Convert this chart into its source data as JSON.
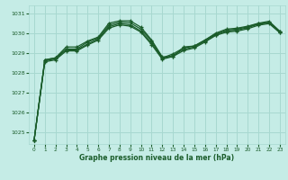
{
  "xlabel": "Graphe pression niveau de la mer (hPa)",
  "background_color": "#c5ece6",
  "grid_color": "#a8d8d0",
  "line_color": "#1a5c2a",
  "ylim": [
    1024.4,
    1031.4
  ],
  "xlim": [
    -0.5,
    23.5
  ],
  "yticks": [
    1025,
    1026,
    1027,
    1028,
    1029,
    1030,
    1031
  ],
  "xticks": [
    0,
    1,
    2,
    3,
    4,
    5,
    6,
    7,
    8,
    9,
    10,
    11,
    12,
    13,
    14,
    15,
    16,
    17,
    18,
    19,
    20,
    21,
    22,
    23
  ],
  "series": [
    [
      1024.6,
      1028.65,
      1028.75,
      1029.3,
      1029.3,
      1029.6,
      1029.8,
      1030.5,
      1030.62,
      1030.62,
      1030.3,
      1029.65,
      1028.8,
      1028.8,
      1029.3,
      1029.35,
      1029.65,
      1030.0,
      1030.2,
      1030.25,
      1030.35,
      1030.5,
      1030.6,
      1030.1
    ],
    [
      1024.6,
      1028.65,
      1028.75,
      1029.2,
      1029.2,
      1029.55,
      1029.75,
      1030.4,
      1030.55,
      1030.52,
      1030.2,
      1029.6,
      1028.75,
      1028.95,
      1029.25,
      1029.35,
      1029.65,
      1029.95,
      1030.15,
      1030.2,
      1030.32,
      1030.48,
      1030.55,
      1030.08
    ],
    [
      1024.6,
      1028.6,
      1028.7,
      1029.15,
      1029.15,
      1029.45,
      1029.7,
      1030.32,
      1030.48,
      1030.42,
      1030.1,
      1029.5,
      1028.72,
      1028.88,
      1029.18,
      1029.3,
      1029.6,
      1029.92,
      1030.1,
      1030.15,
      1030.28,
      1030.45,
      1030.52,
      1030.05
    ],
    [
      1024.6,
      1028.55,
      1028.65,
      1029.1,
      1029.1,
      1029.4,
      1029.65,
      1030.25,
      1030.42,
      1030.35,
      1030.05,
      1029.42,
      1028.68,
      1028.82,
      1029.12,
      1029.25,
      1029.55,
      1029.88,
      1030.05,
      1030.1,
      1030.22,
      1030.4,
      1030.48,
      1030.02
    ]
  ]
}
